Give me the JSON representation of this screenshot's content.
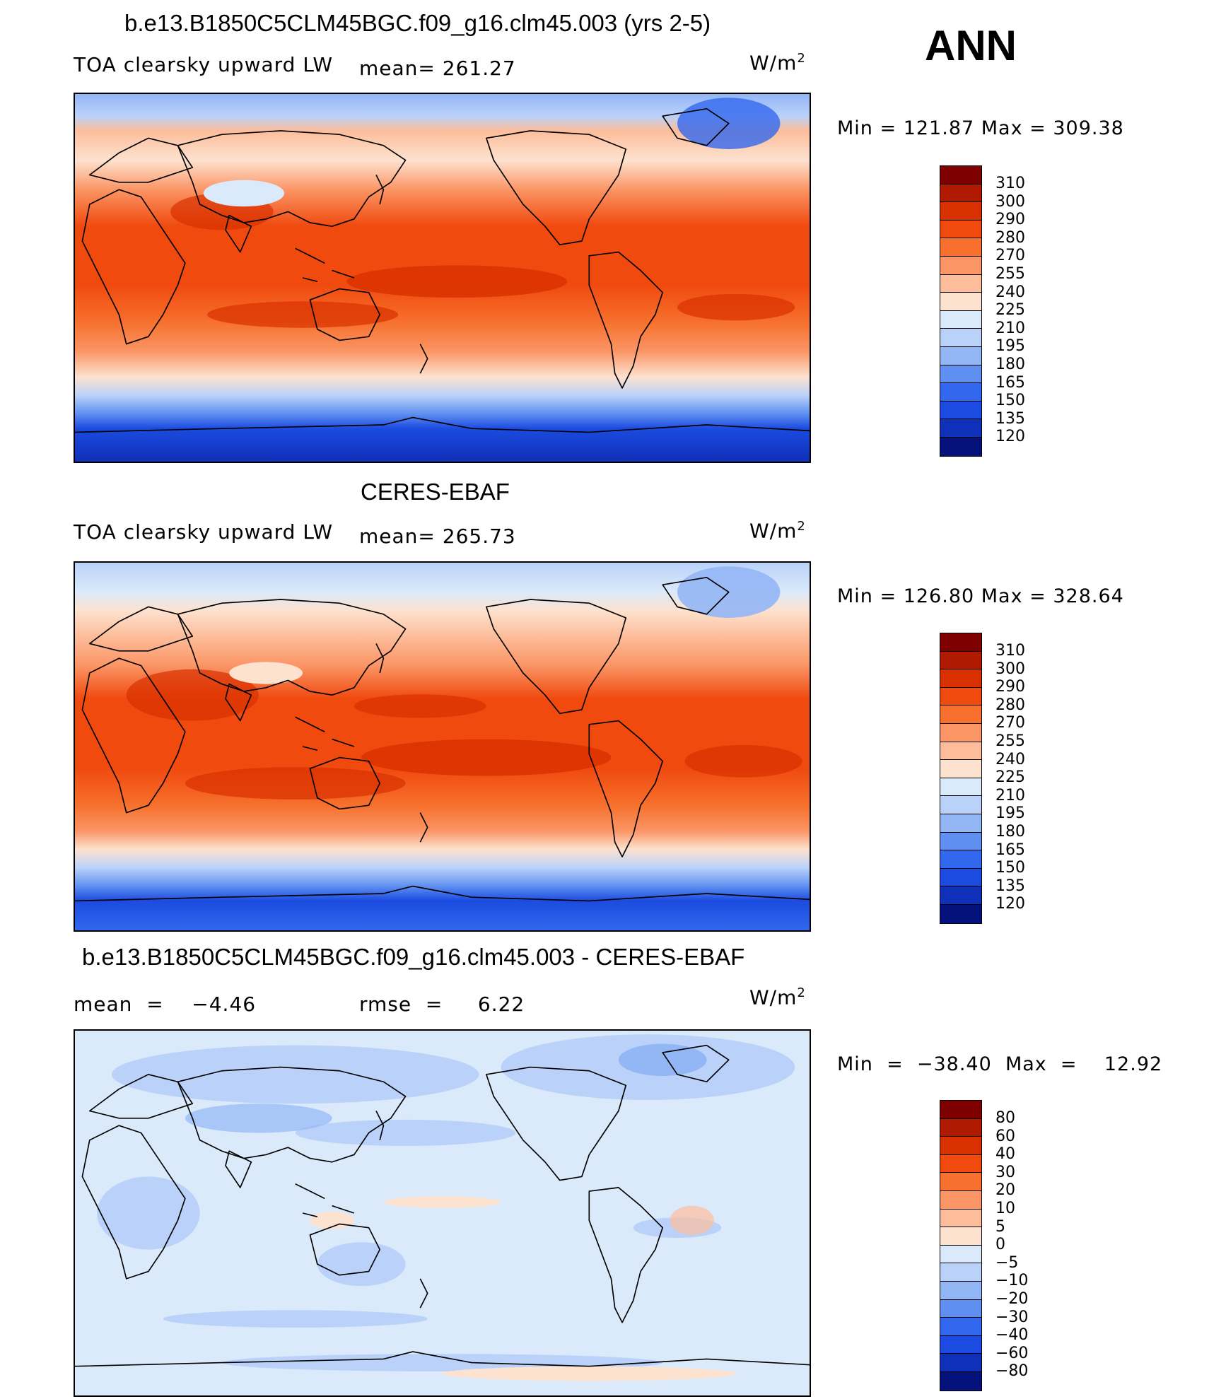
{
  "season": "ANN",
  "panels": [
    {
      "title": "b.e13.B1850C5CLM45BGC.f09_g16.clm45.003 (yrs 2-5)",
      "variable": "TOA clearsky upward LW",
      "mean_text": "mean= 261.27",
      "units": "W/m",
      "units_sup": "2",
      "minmax": "Min  =  121.87  Max  =  309.38",
      "colorbar_labels": [
        "310",
        "300",
        "290",
        "280",
        "270",
        "255",
        "240",
        "225",
        "210",
        "195",
        "180",
        "165",
        "150",
        "135",
        "120"
      ],
      "colorbar_colors": [
        "#7f0000",
        "#b01a00",
        "#d93000",
        "#f04a0f",
        "#f7702d",
        "#fb9565",
        "#fdbd9b",
        "#fde2cf",
        "#dbeafa",
        "#bad2fa",
        "#93b6f5",
        "#5f8ff0",
        "#3268ee",
        "#1b4be0",
        "#0f30b8",
        "#05127c"
      ]
    },
    {
      "title": "CERES-EBAF",
      "variable": "TOA clearsky upward LW",
      "mean_text": "mean= 265.73",
      "units": "W/m",
      "units_sup": "2",
      "minmax": "Min  =  126.80  Max  =  328.64",
      "colorbar_labels": [
        "310",
        "300",
        "290",
        "280",
        "270",
        "255",
        "240",
        "225",
        "210",
        "195",
        "180",
        "165",
        "150",
        "135",
        "120"
      ],
      "colorbar_colors": [
        "#7f0000",
        "#b01a00",
        "#d93000",
        "#f04a0f",
        "#f7702d",
        "#fb9565",
        "#fdbd9b",
        "#fde2cf",
        "#dbeafa",
        "#bad2fa",
        "#93b6f5",
        "#5f8ff0",
        "#3268ee",
        "#1b4be0",
        "#0f30b8",
        "#05127c"
      ]
    },
    {
      "title": "b.e13.B1850C5CLM45BGC.f09_g16.clm45.003 - CERES-EBAF",
      "mean_text": "mean  =    −4.46",
      "rmse_text": "rmse  =     6.22",
      "units": "W/m",
      "units_sup": "2",
      "minmax": "Min  =  −38.40  Max  =    12.92",
      "colorbar_labels": [
        "80",
        "60",
        "40",
        "30",
        "20",
        "10",
        "5",
        "0",
        "−5",
        "−10",
        "−20",
        "−30",
        "−40",
        "−60",
        "−80"
      ],
      "colorbar_colors": [
        "#7f0000",
        "#b01a00",
        "#d93000",
        "#f04a0f",
        "#f7702d",
        "#fb9565",
        "#fdbd9b",
        "#fde2cf",
        "#dbeafa",
        "#bad2fa",
        "#93b6f5",
        "#5f8ff0",
        "#3268ee",
        "#1b4be0",
        "#0f30b8",
        "#05127c"
      ]
    }
  ]
}
